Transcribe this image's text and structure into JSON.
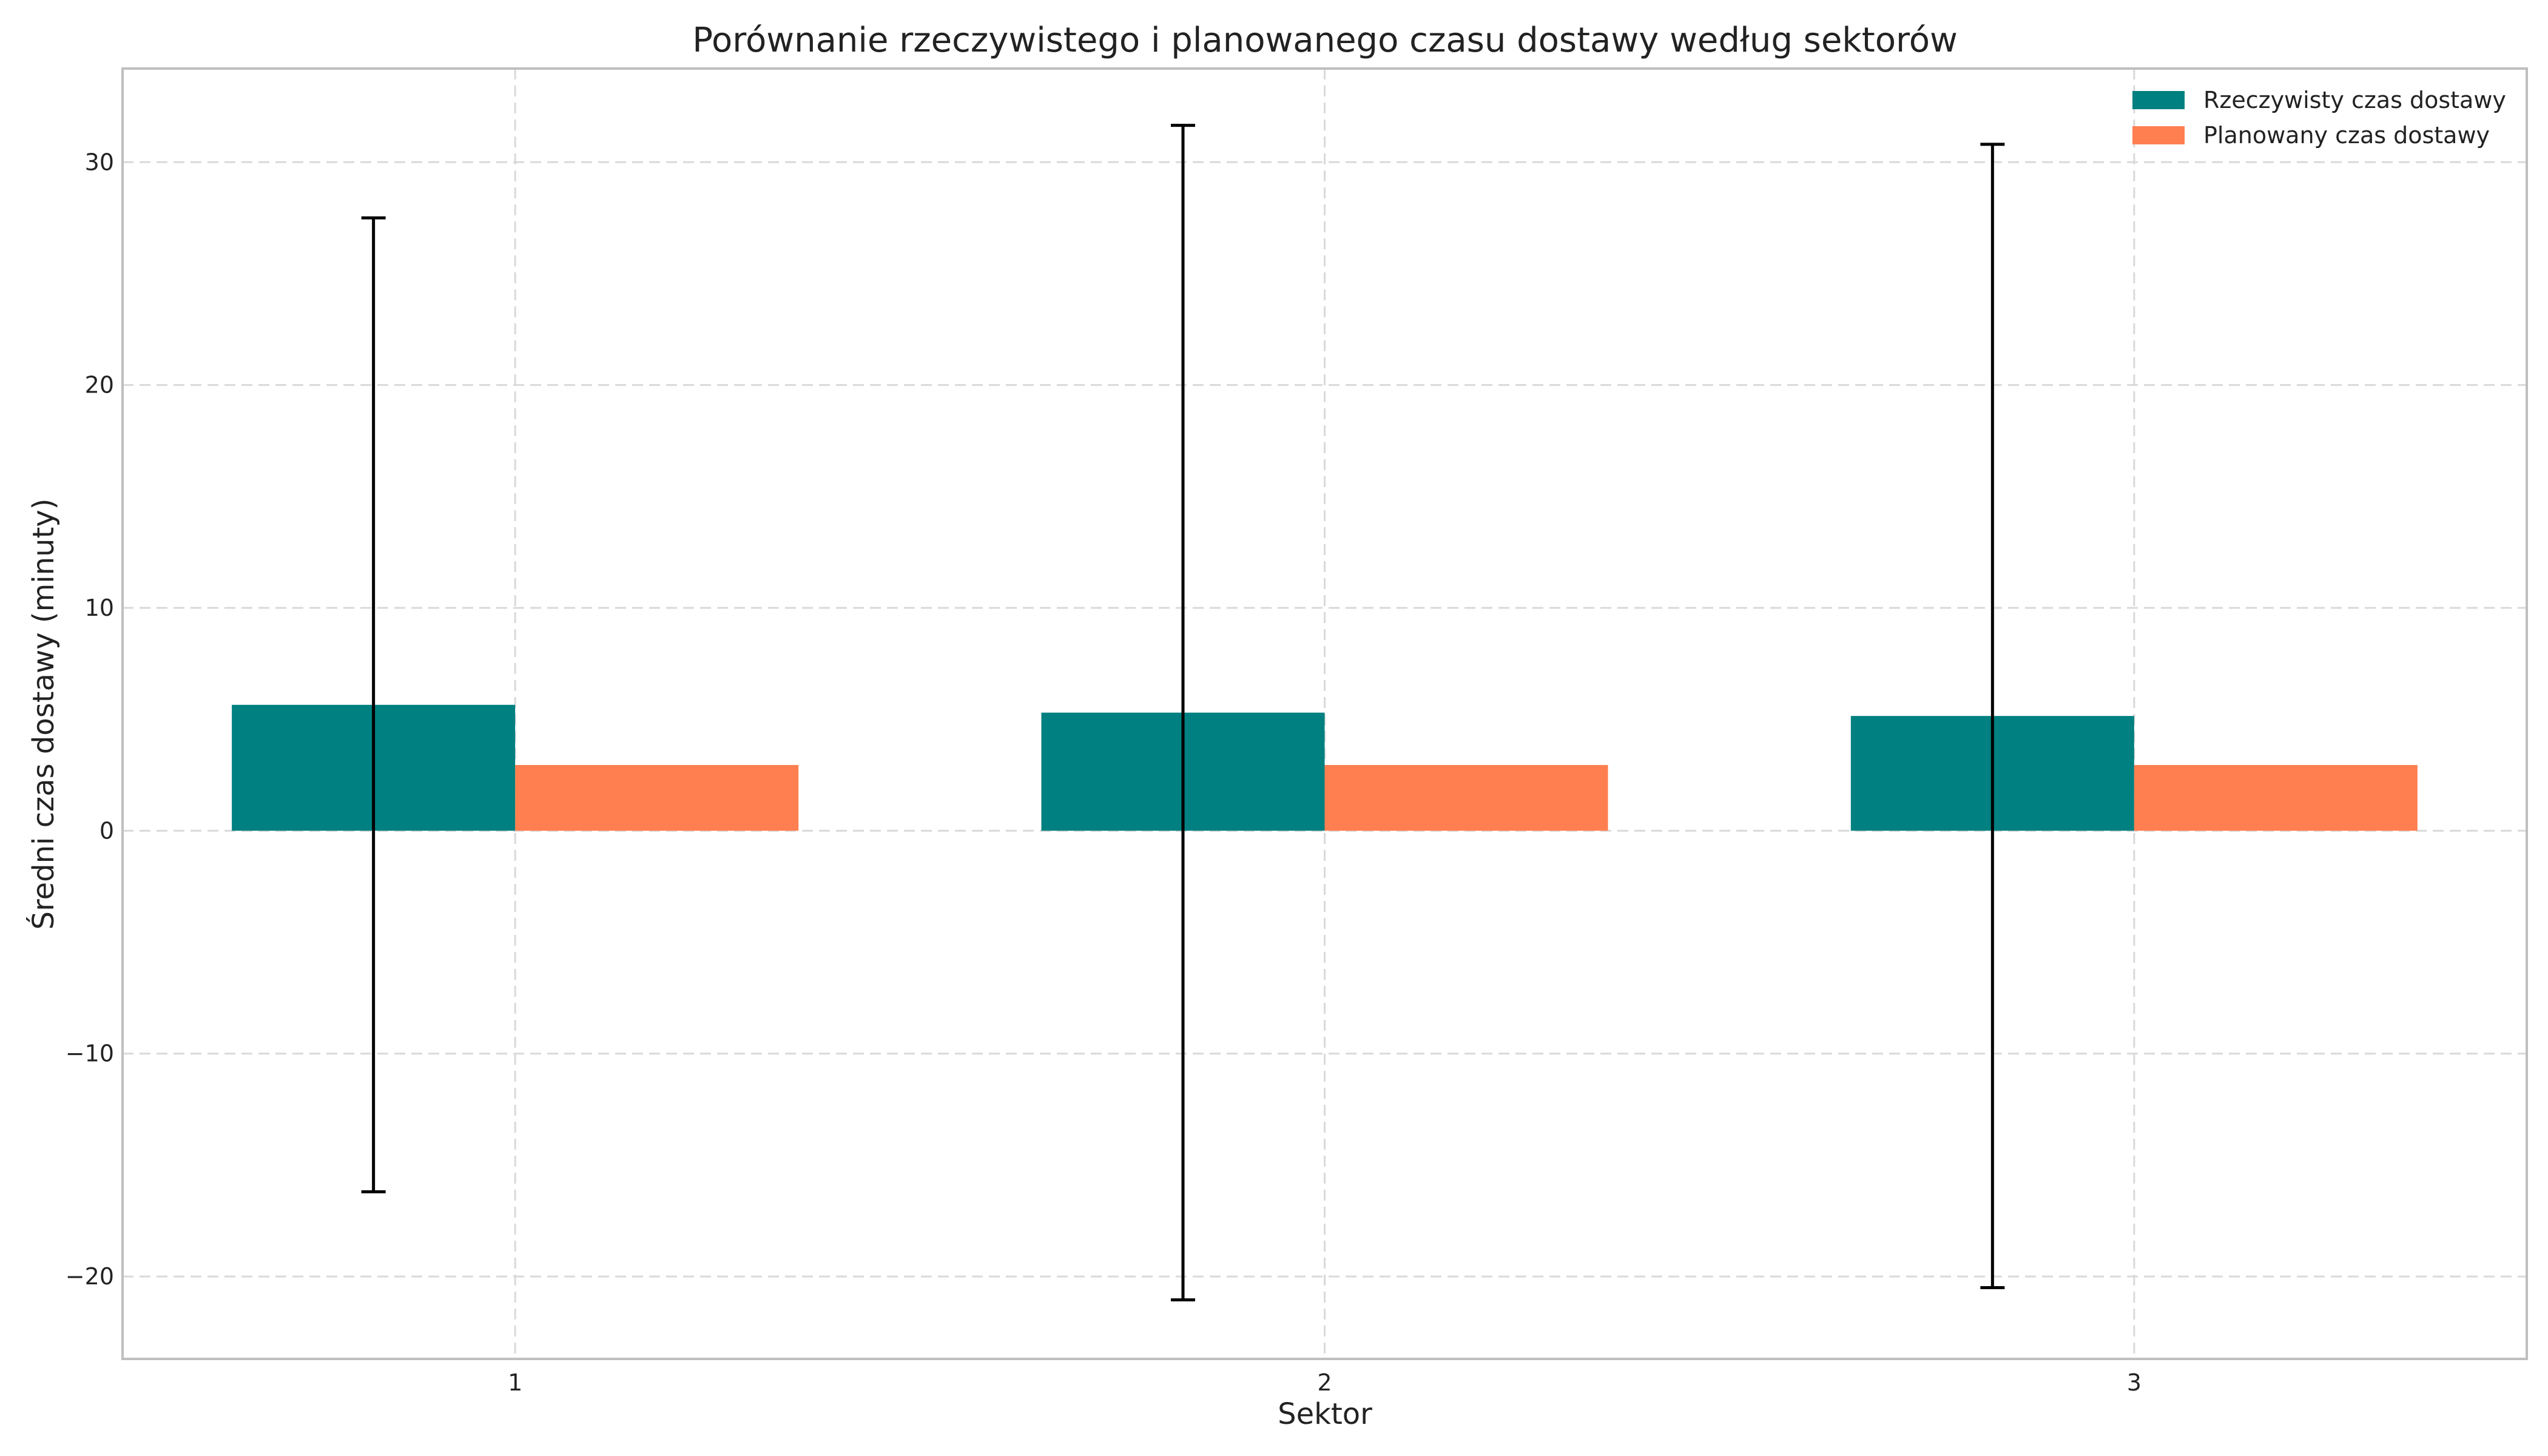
{
  "chart_data": {
    "type": "bar",
    "title": "Porównanie rzeczywistego i planowanego czasu dostawy według sektorów",
    "xlabel": "Sektor",
    "ylabel": "Średni czas dostawy (minuty)",
    "categories": [
      "1",
      "2",
      "3"
    ],
    "ylim": [
      -23.7,
      34.2
    ],
    "yticks": [
      -20,
      -10,
      0,
      10,
      20,
      30
    ],
    "ytick_labels": [
      "−20",
      "−10",
      "0",
      "10",
      "20",
      "30"
    ],
    "grid": true,
    "legend_position": "top-right",
    "series": [
      {
        "name": "Rzeczywisty czas dostawy",
        "color": "#008080",
        "values": [
          5.65,
          5.3,
          5.15
        ],
        "error": [
          21.85,
          26.35,
          25.65
        ]
      },
      {
        "name": "Planowany czas dostawy",
        "color": "#FF7F50",
        "values": [
          2.95,
          2.95,
          2.95
        ]
      }
    ]
  }
}
